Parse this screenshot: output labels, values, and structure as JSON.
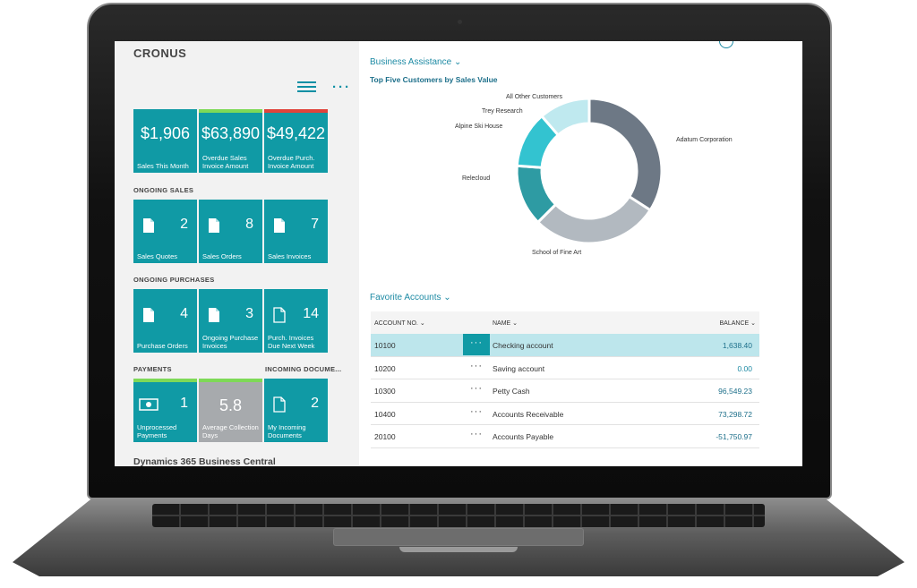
{
  "app": {
    "brand": "CRONUS",
    "footer": "Dynamics 365 Business Central"
  },
  "tiles_top": [
    {
      "value": "$1,906",
      "caption": "Sales This Month",
      "bar_color": ""
    },
    {
      "value": "$63,890",
      "caption": "Overdue Sales Invoice Amount",
      "bar_color": "#7ed957"
    },
    {
      "value": "$49,422",
      "caption": "Overdue Purch. Invoice Amount",
      "bar_color": "#e0433b"
    }
  ],
  "sections": {
    "ongoing_sales": "ONGOING SALES",
    "ongoing_purchases": "ONGOING PURCHASES",
    "payments": "PAYMENTS",
    "incoming_documents": "INCOMING DOCUME..."
  },
  "tiles_sales": [
    {
      "value": "2",
      "caption": "Sales Quotes"
    },
    {
      "value": "8",
      "caption": "Sales Orders"
    },
    {
      "value": "7",
      "caption": "Sales Invoices"
    }
  ],
  "tiles_purchases": [
    {
      "value": "4",
      "caption": "Purchase Orders"
    },
    {
      "value": "3",
      "caption": "Ongoing Purchase Invoices"
    },
    {
      "value": "14",
      "caption": "Purch. Invoices Due Next Week"
    }
  ],
  "tiles_payments": [
    {
      "value": "1",
      "caption": "Unprocessed Payments"
    },
    {
      "value": "5.8",
      "caption": "Average Collection Days"
    },
    {
      "value": "2",
      "caption": "My Incoming Documents"
    }
  ],
  "business_assistance": {
    "label": "Business Assistance",
    "chevron": "chevron-down-icon"
  },
  "chart_data": {
    "type": "pie",
    "donut": true,
    "title": "Top Five Customers by Sales Value",
    "slices": [
      {
        "label": "Adatum Corporation",
        "value": 30,
        "color": "#6d7885"
      },
      {
        "label": "School of Fine Art",
        "value": 25,
        "color": "#b2b9c0"
      },
      {
        "label": "Relecloud",
        "value": 12,
        "color": "#2e9ba3"
      },
      {
        "label": "Alpine Ski House",
        "value": 11,
        "color": "#33c3d0"
      },
      {
        "label": "Trey Research",
        "value": 0,
        "color": "#4fb7c9"
      },
      {
        "label": "All Other Customers",
        "value": 10,
        "color": "#bfe9ef"
      }
    ]
  },
  "favorite_accounts": {
    "label": "Favorite Accounts",
    "columns": {
      "account_no": "ACCOUNT NO.",
      "name": "NAME",
      "balance": "BALANCE"
    },
    "rows": [
      {
        "no": "10100",
        "name": "Checking account",
        "balance": "1,638.40"
      },
      {
        "no": "10200",
        "name": "Saving account",
        "balance": "0.00"
      },
      {
        "no": "10300",
        "name": "Petty Cash",
        "balance": "96,549.23"
      },
      {
        "no": "10400",
        "name": "Accounts Receivable",
        "balance": "73,298.72"
      },
      {
        "no": "20100",
        "name": "Accounts Payable",
        "balance": "-51,750.97"
      }
    ],
    "more_glyph": "···"
  },
  "colors": {
    "tile": "#109aa5",
    "accent": "#1d8aa4",
    "selected_row": "#bde6ec"
  }
}
